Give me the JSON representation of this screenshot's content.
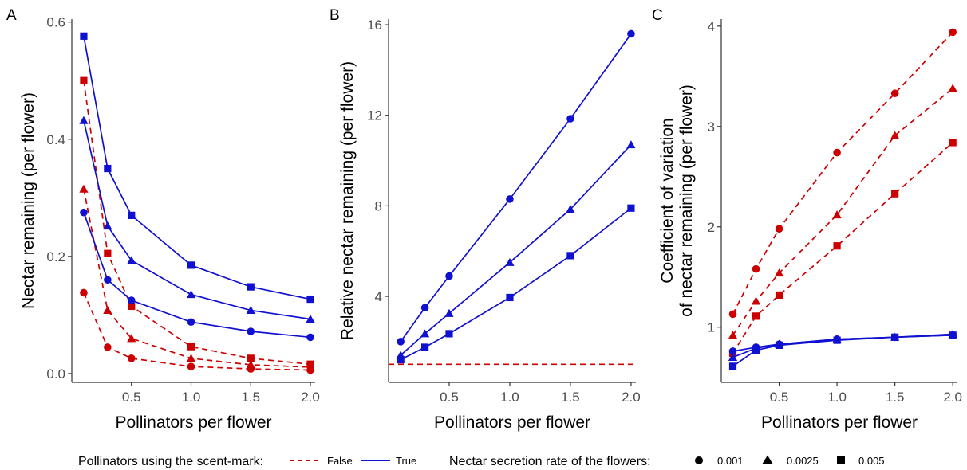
{
  "colors": {
    "false": "#cc0000",
    "true": "#1010d0",
    "axis": "#333333"
  },
  "legend": {
    "mark_title": "Pollinators using the scent-mark:",
    "mark_items": [
      {
        "label": "False",
        "key": "false",
        "dash": true
      },
      {
        "label": "True",
        "key": "true",
        "dash": false
      }
    ],
    "rate_title": "Nectar secretion rate of the flowers:",
    "rate_items": [
      {
        "label": "0.001",
        "shape": "circle"
      },
      {
        "label": "0.0025",
        "shape": "triangle"
      },
      {
        "label": "0.005",
        "shape": "square"
      }
    ]
  },
  "chart_data": [
    {
      "panel": "A",
      "type": "line",
      "xlabel": "Pollinators per flower",
      "ylabel": [
        "Nectar remaining (per flower)"
      ],
      "xlim": [
        0.0,
        2.04
      ],
      "ylim": [
        -0.015,
        0.605
      ],
      "xticks": [
        0.5,
        1.0,
        1.5,
        2.0
      ],
      "xtick_labels": [
        "0.5",
        "1.0",
        "1.5",
        "2.0"
      ],
      "yticks": [
        0.0,
        0.2,
        0.4,
        0.6
      ],
      "ytick_labels": [
        "0.0",
        "0.2",
        "0.4",
        "0.6"
      ],
      "x": [
        0.1,
        0.3,
        0.5,
        1.0,
        1.5,
        2.0
      ],
      "series": [
        {
          "mark": "false",
          "rate": "0.001",
          "shape": "circle",
          "values": [
            0.138,
            0.045,
            0.026,
            0.012,
            0.008,
            0.006
          ]
        },
        {
          "mark": "false",
          "rate": "0.0025",
          "shape": "triangle",
          "values": [
            0.315,
            0.108,
            0.06,
            0.026,
            0.015,
            0.011
          ]
        },
        {
          "mark": "false",
          "rate": "0.005",
          "shape": "square",
          "values": [
            0.5,
            0.205,
            0.115,
            0.046,
            0.026,
            0.016
          ]
        },
        {
          "mark": "true",
          "rate": "0.001",
          "shape": "circle",
          "values": [
            0.275,
            0.16,
            0.125,
            0.088,
            0.072,
            0.062
          ]
        },
        {
          "mark": "true",
          "rate": "0.0025",
          "shape": "triangle",
          "values": [
            0.432,
            0.252,
            0.193,
            0.135,
            0.108,
            0.093
          ]
        },
        {
          "mark": "true",
          "rate": "0.005",
          "shape": "square",
          "values": [
            0.576,
            0.35,
            0.27,
            0.185,
            0.148,
            0.127
          ]
        }
      ]
    },
    {
      "panel": "B",
      "type": "line",
      "xlabel": "Pollinators per flower",
      "ylabel": [
        "Relative nectar remaining (per flower)"
      ],
      "xlim": [
        0.0,
        2.04
      ],
      "ylim": [
        0.2,
        16.25
      ],
      "xticks": [
        0.5,
        1.0,
        1.5,
        2.0
      ],
      "xtick_labels": [
        "0.5",
        "1.0",
        "1.5",
        "2.0"
      ],
      "yticks": [
        4,
        8,
        12,
        16
      ],
      "ytick_labels": [
        "4",
        "8",
        "12",
        "16"
      ],
      "x": [
        0.1,
        0.3,
        0.5,
        1.0,
        1.5,
        2.0
      ],
      "reference_line": {
        "mark": "false",
        "y": 1.0
      },
      "series": [
        {
          "mark": "true",
          "rate": "0.001",
          "shape": "circle",
          "values": [
            2.0,
            3.5,
            4.9,
            8.3,
            11.85,
            15.6
          ]
        },
        {
          "mark": "true",
          "rate": "0.0025",
          "shape": "triangle",
          "values": [
            1.4,
            2.35,
            3.25,
            5.5,
            7.85,
            10.7
          ]
        },
        {
          "mark": "true",
          "rate": "0.005",
          "shape": "square",
          "values": [
            1.2,
            1.75,
            2.35,
            3.95,
            5.8,
            7.9
          ]
        }
      ]
    },
    {
      "panel": "C",
      "type": "line",
      "xlabel": "Pollinators per flower",
      "ylabel": [
        "Coefficient of variation",
        "of nectar remaining (per flower)"
      ],
      "xlim": [
        0.0,
        2.04
      ],
      "ylim": [
        0.45,
        4.07
      ],
      "xticks": [
        0.5,
        1.0,
        1.5,
        2.0
      ],
      "xtick_labels": [
        "0.5",
        "1.0",
        "1.5",
        "2.0"
      ],
      "yticks": [
        1,
        2,
        3,
        4
      ],
      "ytick_labels": [
        "1",
        "2",
        "3",
        "4"
      ],
      "x": [
        0.1,
        0.3,
        0.5,
        1.0,
        1.5,
        2.0
      ],
      "series": [
        {
          "mark": "false",
          "rate": "0.001",
          "shape": "circle",
          "values": [
            1.13,
            1.58,
            1.98,
            2.74,
            3.33,
            3.94
          ]
        },
        {
          "mark": "false",
          "rate": "0.0025",
          "shape": "triangle",
          "values": [
            0.92,
            1.26,
            1.54,
            2.12,
            2.91,
            3.38
          ]
        },
        {
          "mark": "false",
          "rate": "0.005",
          "shape": "square",
          "values": [
            0.74,
            1.11,
            1.32,
            1.81,
            2.33,
            2.84
          ]
        },
        {
          "mark": "true",
          "rate": "0.001",
          "shape": "circle",
          "values": [
            0.76,
            0.8,
            0.83,
            0.88,
            0.9,
            0.92
          ]
        },
        {
          "mark": "true",
          "rate": "0.0025",
          "shape": "triangle",
          "values": [
            0.7,
            0.79,
            0.83,
            0.88,
            0.9,
            0.93
          ]
        },
        {
          "mark": "true",
          "rate": "0.005",
          "shape": "square",
          "values": [
            0.61,
            0.77,
            0.82,
            0.87,
            0.9,
            0.92
          ]
        }
      ]
    }
  ]
}
